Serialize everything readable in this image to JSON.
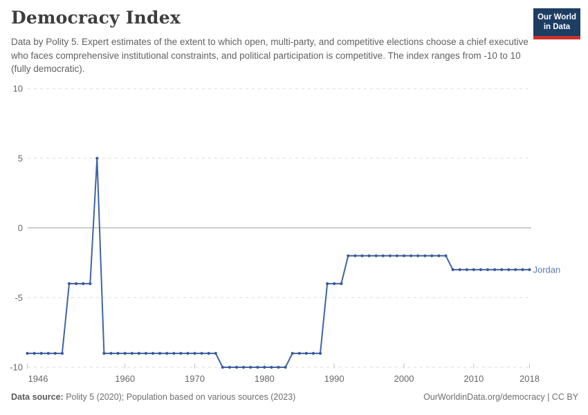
{
  "header": {
    "title": "Democracy Index",
    "subtitle": "Data by Polity 5. Expert estimates of the extent to which open, multi-party, and competitive elections choose a chief executive who faces comprehensive institutional constraints, and political participation is competitive. The index ranges from -10 to 10 (fully democratic).",
    "logo": {
      "line1": "Our World",
      "line2": "in Data"
    }
  },
  "chart_data": {
    "type": "line",
    "title": "Democracy Index",
    "entity_label": "Jordan",
    "xlim": [
      1946,
      2018
    ],
    "ylim": [
      -10,
      10
    ],
    "x_ticks": [
      1946,
      1960,
      1970,
      1980,
      1990,
      2000,
      2010,
      2018
    ],
    "y_ticks": [
      10,
      5,
      0,
      -5,
      -10
    ],
    "grid": "horizontal dashed gridlines, solid line at zero",
    "legend_position": "label at end of line",
    "series": [
      {
        "name": "Jordan",
        "start_year": 1946,
        "values": [
          -9,
          -9,
          -9,
          -9,
          -9,
          -9,
          -4,
          -4,
          -4,
          -4,
          5,
          -9,
          -9,
          -9,
          -9,
          -9,
          -9,
          -9,
          -9,
          -9,
          -9,
          -9,
          -9,
          -9,
          -9,
          -9,
          -9,
          -9,
          -10,
          -10,
          -10,
          -10,
          -10,
          -10,
          -10,
          -10,
          -10,
          -10,
          -9,
          -9,
          -9,
          -9,
          -9,
          -4,
          -4,
          -4,
          -2,
          -2,
          -2,
          -2,
          -2,
          -2,
          -2,
          -2,
          -2,
          -2,
          -2,
          -2,
          -2,
          -2,
          -2,
          -3,
          -3,
          -3,
          -3,
          -3,
          -3,
          -3,
          -3,
          -3,
          -3,
          -3,
          -3
        ]
      }
    ],
    "colors": {
      "line": "#3f63a2",
      "point": "#3a5a97",
      "entity_label": "#5a7bb5",
      "gridline": "#dcdcdc",
      "zero_line": "#a0a0a0",
      "axis_text": "#666666"
    }
  },
  "footer": {
    "data_source_label": "Data source:",
    "data_source_text": " Polity 5 (2020); Population based on various sources (2023)",
    "attribution": "OurWorldinData.org/democracy | CC BY"
  },
  "brand": {
    "navy": "#1d3d63",
    "red": "#cc312b"
  }
}
